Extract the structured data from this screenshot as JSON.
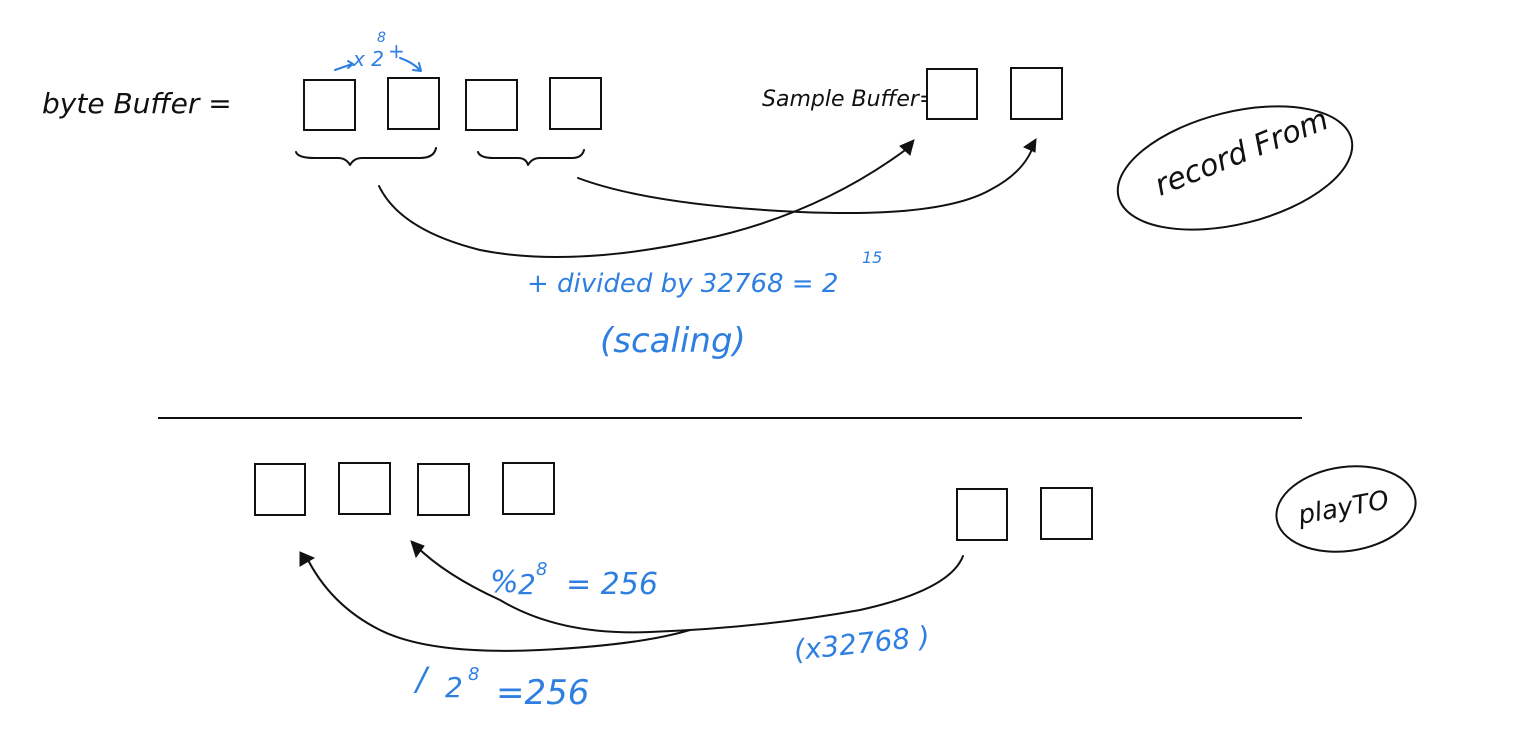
{
  "colors": {
    "ink": "#111111",
    "annotation": "#2f7fe0",
    "background": "#ffffff"
  },
  "top": {
    "byte_buffer_label": "byte Buffer =",
    "sample_buffer_label": "Sample Buffer=",
    "shift_annotation": "x 2",
    "shift_exponent": "8",
    "shift_plus": "+",
    "divided_text": "+ divided  by 32768 = 2",
    "divided_exponent": "15",
    "scaling_text": "(scaling)",
    "badge": "record From"
  },
  "bottom": {
    "mod_text": "%",
    "mod_base": "2",
    "mod_exponent": "8",
    "mod_result": "= 256",
    "div_text": "/",
    "div_base": "2",
    "div_exponent": "8",
    "div_result": "=256",
    "multiply_text": "(x32768 )",
    "badge": "playTO"
  }
}
